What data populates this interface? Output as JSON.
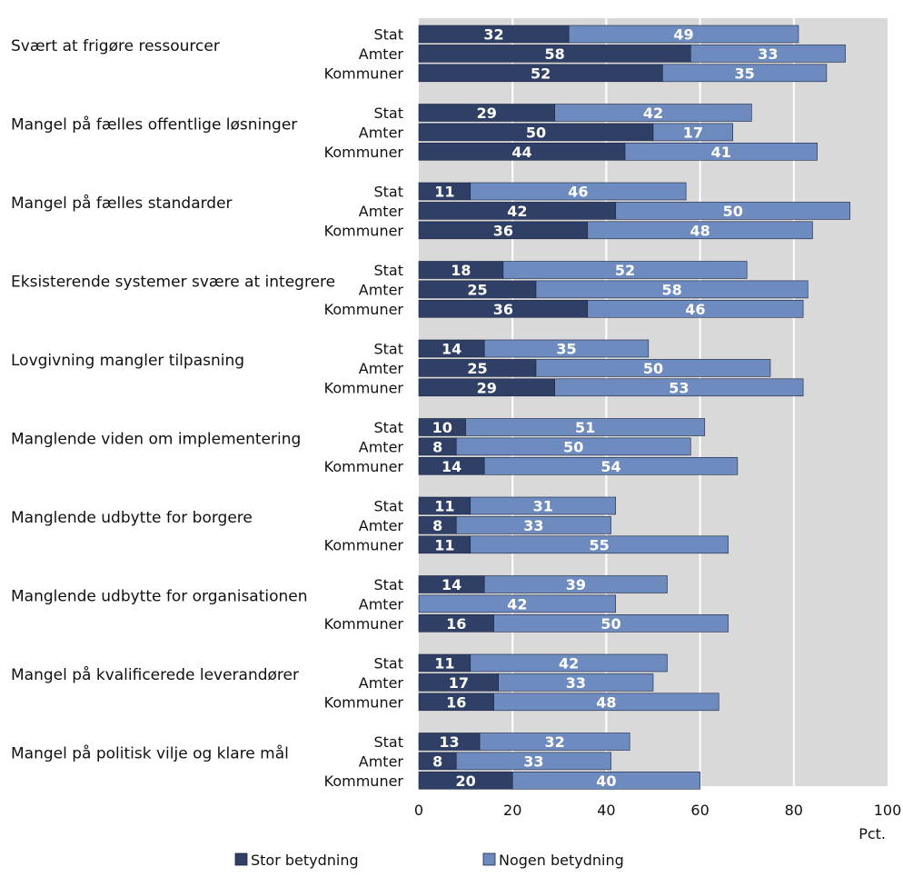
{
  "chart_data": {
    "type": "bar",
    "orientation": "horizontal",
    "stacked": true,
    "groups": [
      "Stat",
      "Amter",
      "Kommuner"
    ],
    "categories": [
      {
        "label": "Svært at frigøre ressourcer",
        "stor": [
          32,
          58,
          52
        ],
        "nogen": [
          49,
          33,
          35
        ]
      },
      {
        "label": "Mangel på fælles offentlige løsninger",
        "stor": [
          29,
          50,
          44
        ],
        "nogen": [
          42,
          17,
          41
        ]
      },
      {
        "label": "Mangel på fælles standarder",
        "stor": [
          11,
          42,
          36
        ],
        "nogen": [
          46,
          50,
          48
        ]
      },
      {
        "label": "Eksisterende systemer svære at integrere",
        "stor": [
          18,
          25,
          36
        ],
        "nogen": [
          52,
          58,
          46
        ]
      },
      {
        "label": "Lovgivning mangler tilpasning",
        "stor": [
          14,
          25,
          29
        ],
        "nogen": [
          35,
          50,
          53
        ]
      },
      {
        "label": "Manglende viden om implementering",
        "stor": [
          10,
          8,
          14
        ],
        "nogen": [
          51,
          50,
          54
        ]
      },
      {
        "label": "Manglende udbytte for borgere",
        "stor": [
          11,
          8,
          11
        ],
        "nogen": [
          31,
          33,
          55
        ]
      },
      {
        "label": "Manglende udbytte for organisationen",
        "stor": [
          14,
          0,
          16
        ],
        "nogen": [
          39,
          42,
          50
        ]
      },
      {
        "label": "Mangel på kvalificerede leverandører",
        "stor": [
          11,
          17,
          16
        ],
        "nogen": [
          42,
          33,
          48
        ]
      },
      {
        "label": "Mangel på politisk vilje og klare mål",
        "stor": [
          13,
          8,
          20
        ],
        "nogen": [
          32,
          33,
          40
        ]
      }
    ],
    "series": [
      {
        "name": "Stor betydning",
        "key": "stor",
        "color": "#2f3f66"
      },
      {
        "name": "Nogen betydning",
        "key": "nogen",
        "color": "#6d8bbf"
      }
    ],
    "xlim": [
      0,
      100
    ],
    "xticks": [
      0,
      20,
      40,
      60,
      80,
      100
    ],
    "xunit": "Pct.",
    "grid": true,
    "legend": "bottom-left",
    "plot_bg": "#d9d9d9",
    "grid_color": "#ffffff"
  }
}
